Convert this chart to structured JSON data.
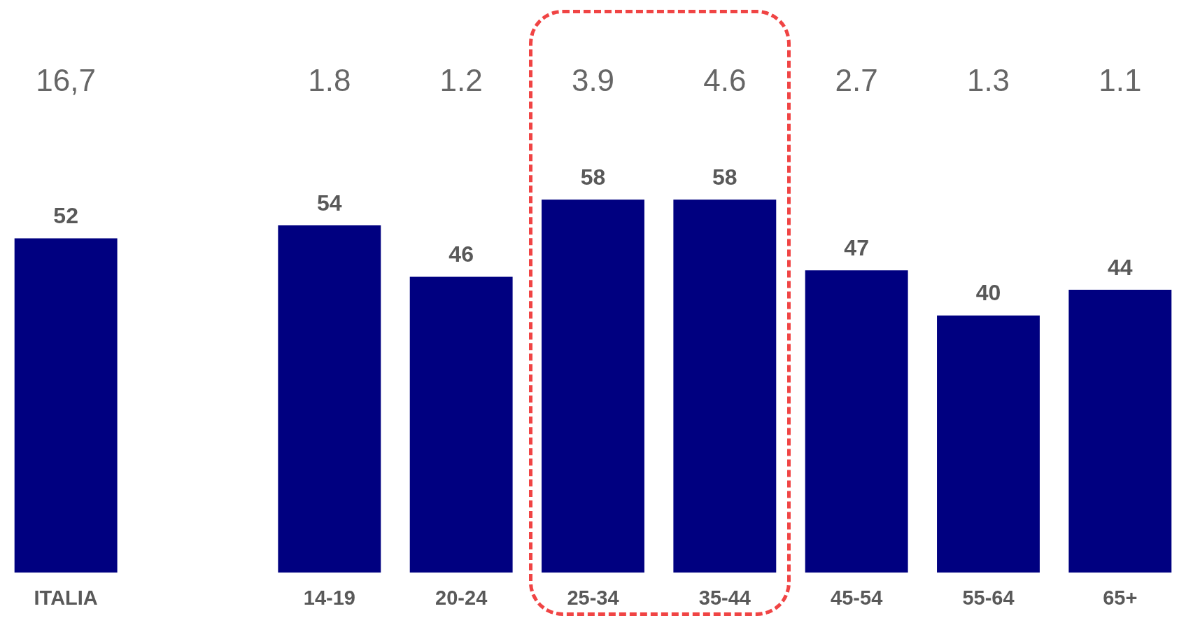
{
  "chart_data": {
    "type": "bar",
    "categories": [
      "ITALIA",
      null,
      "14-19",
      "20-24",
      "25-34",
      "35-44",
      "45-54",
      "55-64",
      "65+"
    ],
    "values": [
      52,
      null,
      54,
      46,
      58,
      58,
      47,
      40,
      44
    ],
    "color": "#000080",
    "data_labels": true,
    "grid": false,
    "legend": false,
    "tick_labels": "x",
    "annotations": [
      "16,7",
      "1.8",
      "1.2",
      "3.9",
      "4.6",
      "2.7",
      "1.3",
      "1.1"
    ]
  }
}
